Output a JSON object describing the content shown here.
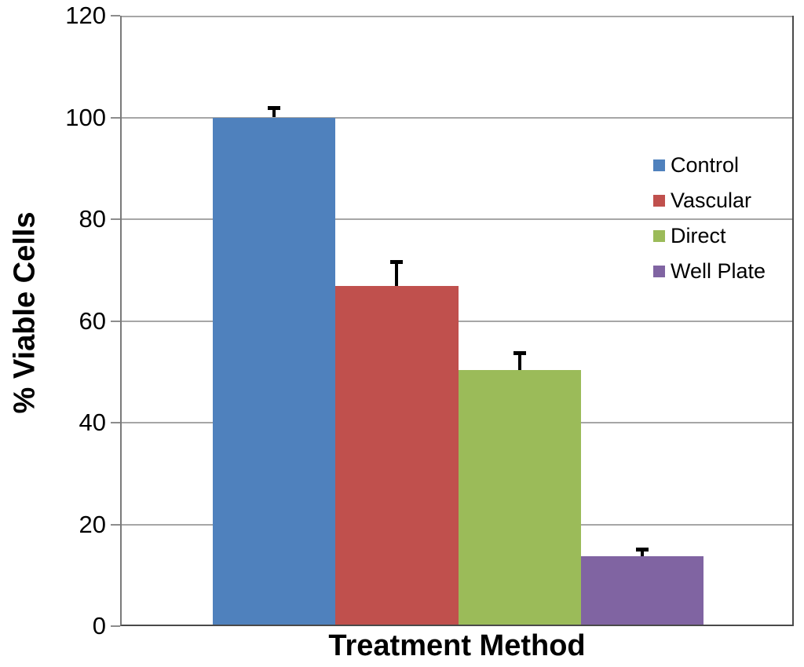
{
  "chart_data": {
    "type": "bar",
    "title": "",
    "xlabel": "Treatment Method",
    "ylabel": "% Viable Cells",
    "categories": [
      "Treatment Method"
    ],
    "series": [
      {
        "name": "Control",
        "value": 100.0,
        "error": 2.0,
        "color": "#4F81BD"
      },
      {
        "name": "Vascular",
        "value": 66.8,
        "error": 4.9,
        "color": "#C0504D"
      },
      {
        "name": "Direct",
        "value": 50.3,
        "error": 3.5,
        "color": "#9BBB59"
      },
      {
        "name": "Well Plate",
        "value": 13.8,
        "error": 1.4,
        "color": "#8064A2"
      }
    ],
    "ylim": [
      0,
      120
    ],
    "yticks": [
      0,
      20,
      40,
      60,
      80,
      100,
      120
    ],
    "grid": true,
    "legend_position": "inside-right",
    "error_bars": "upper-only"
  },
  "colors": {
    "background": "#FFFFFF",
    "gridline": "#A6A6A6",
    "axis": "#4A4A4A",
    "text": "#000000",
    "error_bar": "#000000"
  }
}
